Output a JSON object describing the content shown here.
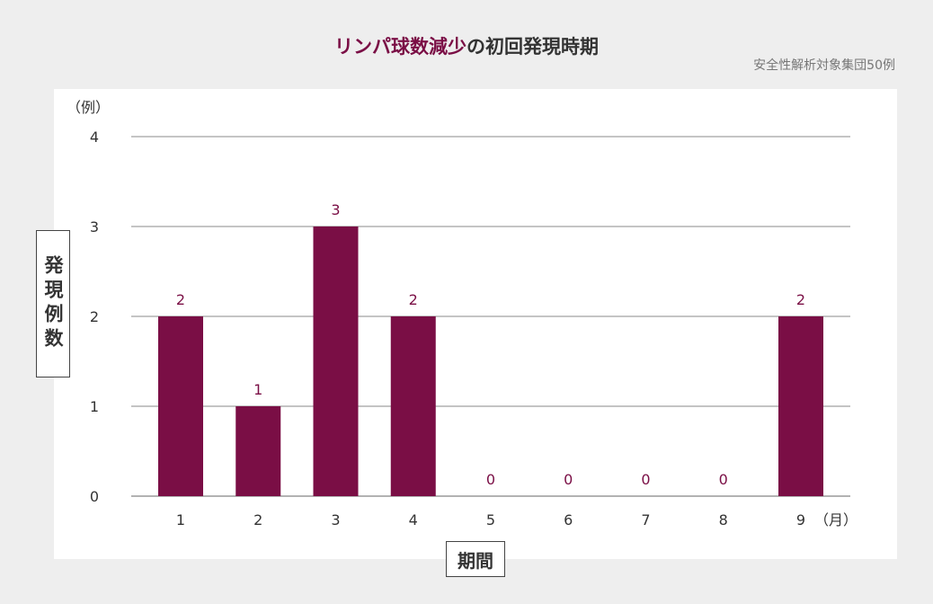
{
  "header": {
    "title_highlight": "リンパ球数減少",
    "title_rest": "の初回発現時期",
    "subtitle": "安全性解析対象集団50例"
  },
  "chart_data": {
    "type": "bar",
    "title": "リンパ球数減少の初回発現時期",
    "subtitle": "安全性解析対象集団50例",
    "categories": [
      "1",
      "2",
      "3",
      "4",
      "5",
      "6",
      "7",
      "8",
      "9"
    ],
    "values": [
      2,
      1,
      3,
      2,
      0,
      0,
      0,
      0,
      2
    ],
    "xlabel": "期間",
    "ylabel": "発現例数",
    "x_unit": "（月）",
    "y_unit": "（例）",
    "ylim": [
      0,
      4
    ],
    "yticks": [
      0,
      1,
      2,
      3,
      4
    ],
    "grid": true,
    "bar_color": "#7a0e45"
  }
}
